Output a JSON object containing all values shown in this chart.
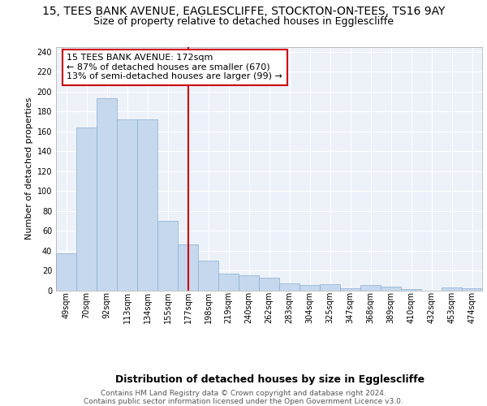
{
  "title_line1": "15, TEES BANK AVENUE, EAGLESCLIFFE, STOCKTON-ON-TEES, TS16 9AY",
  "title_line2": "Size of property relative to detached houses in Egglescliffe",
  "xlabel": "Distribution of detached houses by size in Egglescliffe",
  "ylabel": "Number of detached properties",
  "categories": [
    "49sqm",
    "70sqm",
    "92sqm",
    "113sqm",
    "134sqm",
    "155sqm",
    "177sqm",
    "198sqm",
    "219sqm",
    "240sqm",
    "262sqm",
    "283sqm",
    "304sqm",
    "325sqm",
    "347sqm",
    "368sqm",
    "389sqm",
    "410sqm",
    "432sqm",
    "453sqm",
    "474sqm"
  ],
  "values": [
    37,
    164,
    193,
    172,
    172,
    70,
    46,
    30,
    17,
    15,
    13,
    7,
    5,
    6,
    2,
    5,
    4,
    1,
    0,
    3,
    2
  ],
  "bar_color": "#c5d8ee",
  "bar_edgecolor": "#8ab0d0",
  "vline_x_idx": 6,
  "vline_color": "#cc0000",
  "annotation_text": "15 TEES BANK AVENUE: 172sqm\n← 87% of detached houses are smaller (670)\n13% of semi-detached houses are larger (99) →",
  "annotation_box_edgecolor": "#cc0000",
  "ylim": [
    0,
    245
  ],
  "yticks": [
    0,
    20,
    40,
    60,
    80,
    100,
    120,
    140,
    160,
    180,
    200,
    220,
    240
  ],
  "footer_text": "Contains HM Land Registry data © Crown copyright and database right 2024.\nContains public sector information licensed under the Open Government Licence v3.0.",
  "background_color": "#edf2f9",
  "grid_color": "#ffffff",
  "title1_fontsize": 10,
  "title2_fontsize": 9,
  "ylabel_fontsize": 8,
  "xlabel_fontsize": 9,
  "tick_fontsize": 7,
  "annot_fontsize": 8,
  "footer_fontsize": 6.5
}
